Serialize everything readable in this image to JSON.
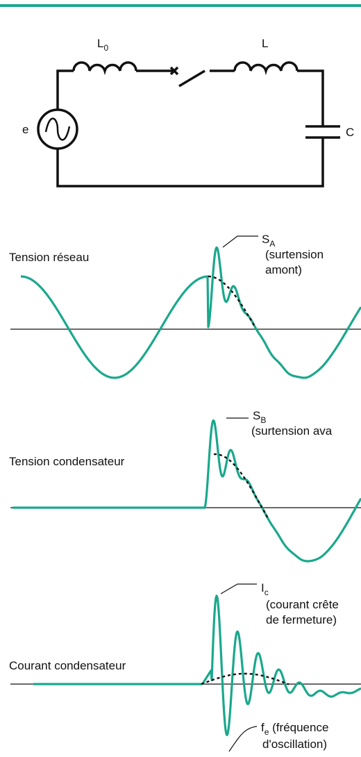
{
  "circuit": {
    "l0": {
      "main": "L",
      "sub": "0"
    },
    "l": "L",
    "source": "e",
    "capacitor": "C"
  },
  "panels": [
    {
      "label": "Tension réseau",
      "marker": {
        "main": "S",
        "sub": "A"
      },
      "note": [
        "(surtension",
        "amont)"
      ]
    },
    {
      "label": "Tension condensateur",
      "marker": {
        "main": "S",
        "sub": "B"
      },
      "note": [
        "(surtension ava"
      ]
    },
    {
      "label": "Courant condensateur",
      "marker": {
        "main": "I",
        "sub": "c"
      },
      "note": [
        "(courant crête",
        "de fermeture)"
      ],
      "freq": {
        "main": "f",
        "sub": "e",
        "rest": " (fréquence",
        "line2": "d'oscillation)"
      }
    }
  ]
}
